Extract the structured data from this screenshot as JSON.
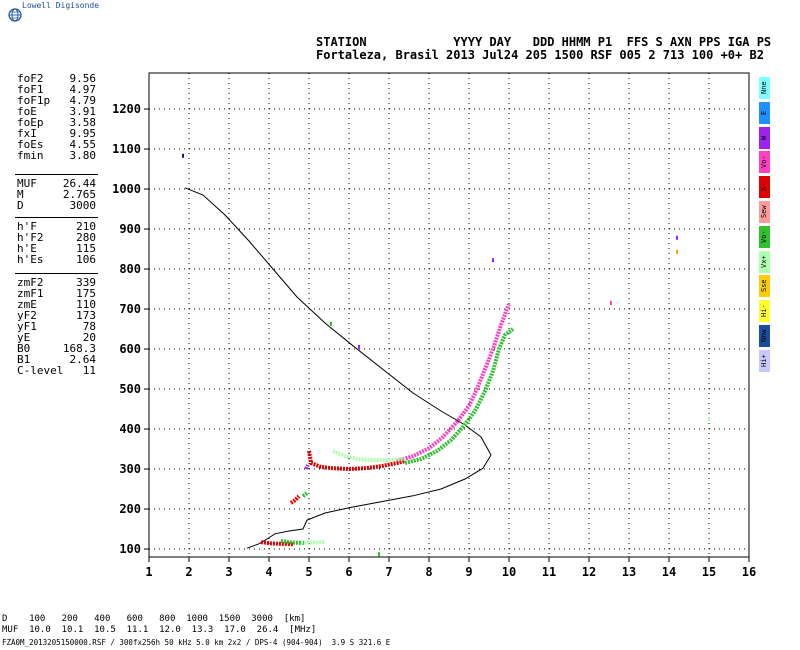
{
  "brand": "Lowell Digisonde",
  "header": {
    "line1": "STATION            YYYY DAY   DDD HHMM P1  FFS S AXN PPS IGA PS",
    "line2": "Fortaleza, Brasil 2013 Jul24 205 1500 RSF 005 2 713 100 +0+ B2"
  },
  "params": {
    "group1": [
      {
        "label": "foF2",
        "value": "9.56"
      },
      {
        "label": "foF1",
        "value": "4.97"
      },
      {
        "label": "foF1p",
        "value": "4.79"
      },
      {
        "label": "foE",
        "value": "3.91"
      },
      {
        "label": "foEp",
        "value": "3.58"
      },
      {
        "label": "fxI",
        "value": "9.95"
      },
      {
        "label": "foEs",
        "value": "4.55"
      },
      {
        "label": "fmin",
        "value": "3.80"
      }
    ],
    "group2": [
      {
        "label": "MUF",
        "value": "26.44"
      },
      {
        "label": "M",
        "value": "2.765"
      },
      {
        "label": "D",
        "value": "3000"
      }
    ],
    "group3": [
      {
        "label": "h'F",
        "value": "210"
      },
      {
        "label": "h'F2",
        "value": "280"
      },
      {
        "label": "h'E",
        "value": "115"
      },
      {
        "label": "h'Es",
        "value": "106"
      }
    ],
    "group4": [
      {
        "label": "zmF2",
        "value": "339"
      },
      {
        "label": "zmF1",
        "value": "175"
      },
      {
        "label": "zmE",
        "value": "110"
      },
      {
        "label": "yF2",
        "value": "173"
      },
      {
        "label": "yF1",
        "value": "78"
      },
      {
        "label": "yE",
        "value": "20"
      },
      {
        "label": "B0",
        "value": "168.3"
      },
      {
        "label": "B1",
        "value": "2.64"
      },
      {
        "label": "C-level",
        "value": "11"
      }
    ]
  },
  "legend": [
    {
      "label": "Nne",
      "color": "#7fffff"
    },
    {
      "label": "E",
      "color": "#1e90ff"
    },
    {
      "label": "W",
      "color": "#a020f0"
    },
    {
      "label": "Vo-",
      "color": "#ff40c0"
    },
    {
      "label": "X-",
      "color": "#e00000"
    },
    {
      "label": "Sew",
      "color": "#ff9a9a"
    },
    {
      "label": "Vo-",
      "color": "#30c030"
    },
    {
      "label": "Vx+",
      "color": "#b0ffb0"
    },
    {
      "label": "Sse",
      "color": "#ffcc00"
    },
    {
      "label": "Hi-",
      "color": "#ffff30"
    },
    {
      "label": "Nnw",
      "color": "#1a4fa0"
    },
    {
      "label": "Hi+",
      "color": "#c8c8ff"
    }
  ],
  "footer": {
    "d_row": "D    100   200   400   600   800  1000  1500  3000  [km]",
    "muf_row": "MUF  10.0  10.1  10.5  11.1  12.0  13.3  17.0  26.4  [MHz]",
    "file_line": "FZA0M_2013205150000.RSF / 300fx256h 50 kHz 5.0 km 2x2 / DPS-4 (904-904)  3.9 S 321.6 E"
  },
  "chart_data": {
    "type": "scatter",
    "title": "",
    "xlabel": "",
    "ylabel": "",
    "xlim": [
      1,
      16
    ],
    "ylim": [
      80,
      1290
    ],
    "x_ticks": [
      "1",
      "2",
      "3",
      "4",
      "5",
      "6",
      "7",
      "8",
      "9",
      "10",
      "11",
      "12",
      "13",
      "14",
      "15",
      "16"
    ],
    "y_ticks": [
      "100",
      "200",
      "300",
      "400",
      "500",
      "600",
      "700",
      "800",
      "900",
      "1000",
      "1100",
      "1200"
    ],
    "grid": true,
    "profile_curve": {
      "name": "",
      "color": "#000000",
      "points": [
        [
          3.45,
          102
        ],
        [
          3.75,
          113
        ],
        [
          3.95,
          125
        ],
        [
          4.15,
          138
        ],
        [
          4.5,
          145
        ],
        [
          4.85,
          150
        ],
        [
          4.95,
          172
        ],
        [
          5.4,
          190
        ],
        [
          6.0,
          203
        ],
        [
          6.8,
          218
        ],
        [
          7.6,
          233
        ],
        [
          8.3,
          250
        ],
        [
          8.9,
          275
        ],
        [
          9.35,
          302
        ],
        [
          9.55,
          335
        ],
        [
          9.3,
          380
        ],
        [
          8.9,
          410
        ],
        [
          8.3,
          445
        ],
        [
          7.6,
          490
        ],
        [
          6.9,
          545
        ],
        [
          6.1,
          608
        ],
        [
          5.4,
          665
        ],
        [
          4.7,
          730
        ],
        [
          4.1,
          800
        ],
        [
          3.5,
          870
        ],
        [
          2.9,
          935
        ],
        [
          2.35,
          985
        ],
        [
          1.9,
          1003
        ]
      ]
    },
    "series": [
      {
        "color": "#ff40c0",
        "points": [
          [
            7.2,
            320
          ],
          [
            7.6,
            332
          ],
          [
            8.0,
            352
          ],
          [
            8.35,
            380
          ],
          [
            8.7,
            418
          ],
          [
            9.0,
            458
          ],
          [
            9.2,
            500
          ],
          [
            9.4,
            550
          ],
          [
            9.6,
            600
          ],
          [
            9.8,
            660
          ],
          [
            9.95,
            700
          ],
          [
            10.0,
            712
          ]
        ]
      },
      {
        "color": "#30c030",
        "points": [
          [
            7.4,
            315
          ],
          [
            7.8,
            325
          ],
          [
            8.2,
            345
          ],
          [
            8.55,
            372
          ],
          [
            8.85,
            405
          ],
          [
            9.15,
            445
          ],
          [
            9.4,
            495
          ],
          [
            9.6,
            545
          ],
          [
            9.75,
            600
          ],
          [
            9.9,
            635
          ],
          [
            10.1,
            650
          ]
        ]
      },
      {
        "color": "#e00000",
        "points": [
          [
            5.0,
            345
          ],
          [
            5.05,
            315
          ],
          [
            5.3,
            305
          ],
          [
            5.6,
            302
          ],
          [
            6.0,
            300
          ],
          [
            6.4,
            302
          ],
          [
            6.8,
            307
          ],
          [
            7.2,
            315
          ],
          [
            7.4,
            320
          ]
        ]
      },
      {
        "color": "#b0ffb0",
        "points": [
          [
            5.6,
            345
          ],
          [
            5.9,
            332
          ],
          [
            6.2,
            325
          ],
          [
            6.6,
            322
          ],
          [
            7.0,
            322
          ],
          [
            7.4,
            325
          ]
        ]
      },
      {
        "color": "#e00000",
        "points": [
          [
            3.8,
            117
          ],
          [
            4.05,
            114
          ],
          [
            4.3,
            113
          ],
          [
            4.6,
            112
          ]
        ]
      },
      {
        "color": "#30c030",
        "points": [
          [
            4.3,
            120
          ],
          [
            4.6,
            116
          ],
          [
            4.9,
            115
          ]
        ]
      },
      {
        "color": "#b0ffb0",
        "points": [
          [
            4.8,
            116
          ],
          [
            5.1,
            116
          ],
          [
            5.4,
            118
          ]
        ]
      },
      {
        "color": "#e00000",
        "points": [
          [
            4.55,
            215
          ],
          [
            4.65,
            222
          ],
          [
            4.75,
            232
          ]
        ]
      },
      {
        "color": "#30c030",
        "points": [
          [
            4.85,
            232
          ],
          [
            4.95,
            240
          ]
        ]
      },
      {
        "color": "#a020f0",
        "points": [
          [
            4.93,
            300
          ],
          [
            4.97,
            310
          ]
        ]
      }
    ],
    "isolated_points": [
      {
        "x": 1.85,
        "y": 1083,
        "color": "#1a1a60"
      },
      {
        "x": 5.55,
        "y": 663,
        "color": "#30c030"
      },
      {
        "x": 6.25,
        "y": 605,
        "color": "#a020f0"
      },
      {
        "x": 9.6,
        "y": 822,
        "color": "#a020f0"
      },
      {
        "x": 12.55,
        "y": 715,
        "color": "#ff40c0"
      },
      {
        "x": 14.2,
        "y": 878,
        "color": "#a020f0"
      },
      {
        "x": 14.2,
        "y": 843,
        "color": "#ff9a00"
      },
      {
        "x": 15.0,
        "y": 425,
        "color": "#b0ffb0"
      },
      {
        "x": 6.75,
        "y": 87,
        "color": "#30c030"
      }
    ]
  }
}
